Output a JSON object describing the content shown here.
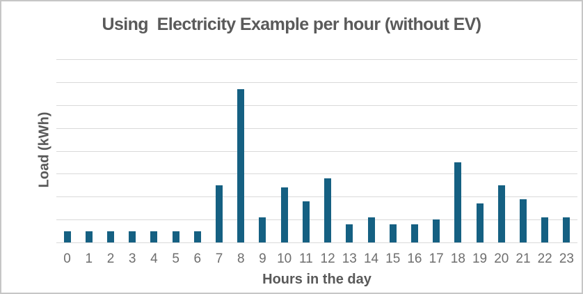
{
  "window": {
    "background": "#FFFFFF",
    "border_color": "#C6C6C6"
  },
  "chart_data": {
    "type": "bar",
    "title": "Using  Electricity Example per hour (without EV)",
    "xlabel": "Hours in the day",
    "ylabel": "Load (kWh)",
    "categories": [
      "0",
      "1",
      "2",
      "3",
      "4",
      "5",
      "6",
      "7",
      "8",
      "9",
      "10",
      "11",
      "12",
      "13",
      "14",
      "15",
      "16",
      "17",
      "18",
      "19",
      "20",
      "21",
      "22",
      "23"
    ],
    "values": [
      0.25,
      0.25,
      0.25,
      0.25,
      0.25,
      0.25,
      0.25,
      1.25,
      3.35,
      0.55,
      1.2,
      0.9,
      1.4,
      0.4,
      0.55,
      0.4,
      0.4,
      0.5,
      1.75,
      0.85,
      1.25,
      0.95,
      0.55,
      0.55
    ],
    "ylim": [
      0,
      4
    ],
    "gridline_interval": 0.5,
    "y_tick_labels_visible": false,
    "grid": "horizontal",
    "legend": "none",
    "bar_color": "#156082",
    "gridline_color": "#D9D9D9",
    "axis_line_color": "#D9D9D9",
    "title_color": "#5A5A5A",
    "axis_title_color": "#595959",
    "tick_label_color": "#6E6E6E"
  }
}
